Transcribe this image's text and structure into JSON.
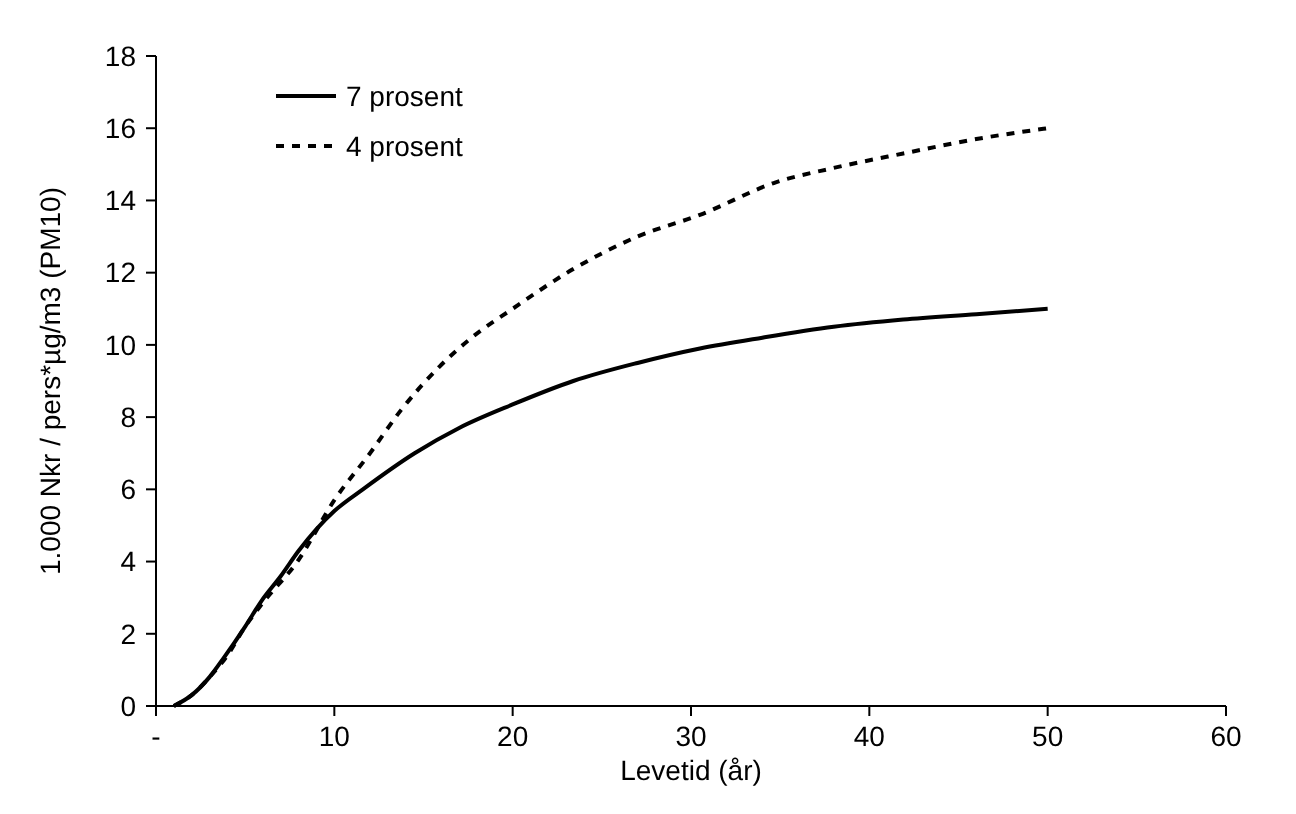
{
  "chart_data": {
    "type": "line",
    "xlabel": "Levetid (år)",
    "ylabel": "1.000 Nkr / pers*µg/m3 (PM10)",
    "xlim": [
      0,
      60
    ],
    "ylim": [
      0,
      18
    ],
    "xticks": [
      {
        "value": 0,
        "label": "-"
      },
      10,
      20,
      30,
      40,
      50,
      60
    ],
    "yticks": [
      0,
      2,
      4,
      6,
      8,
      10,
      12,
      14,
      16,
      18
    ],
    "grid": false,
    "legend": "top left",
    "marker": "none",
    "series": [
      {
        "name": "7 prosent",
        "color": "#000000",
        "line_style": "solid",
        "x": [
          1,
          2,
          3,
          3.75,
          5,
          5.9,
          7,
          8,
          9,
          10,
          11.6,
          14.5,
          17,
          20,
          23.4,
          27,
          30.5,
          34,
          38,
          41.9,
          46,
          50
        ],
        "values": [
          0,
          0.3,
          0.8,
          1.3,
          2.2,
          2.9,
          3.6,
          4.3,
          4.9,
          5.4,
          6,
          7,
          7.7,
          8.35,
          9,
          9.5,
          9.9,
          10.2,
          10.5,
          10.7,
          10.85,
          11
        ]
      },
      {
        "name": "4 prosent",
        "color": "#000000",
        "line_style": "dashed",
        "x": [
          1,
          2,
          3,
          4,
          5,
          5.9,
          8,
          10,
          12,
          13.75,
          15.9,
          17.7,
          20,
          23.4,
          27,
          30.5,
          34.75,
          38,
          41.9,
          46,
          50
        ],
        "values": [
          0,
          0.3,
          0.8,
          1.4,
          2.2,
          2.8,
          4.05,
          5.7,
          7,
          8.2,
          9.4,
          10.2,
          11,
          12.1,
          13,
          13.6,
          14.5,
          14.9,
          15.3,
          15.7,
          16
        ]
      }
    ]
  }
}
